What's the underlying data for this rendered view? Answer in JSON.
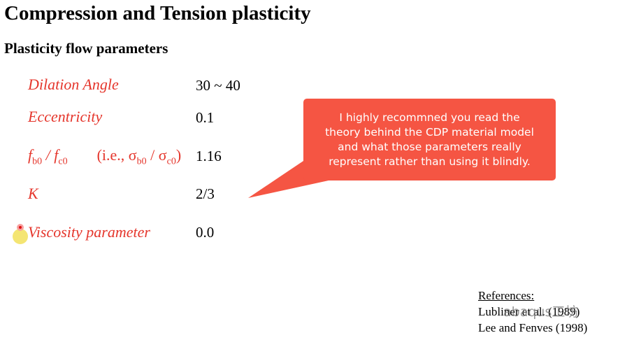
{
  "header": {
    "title": "Compression and Tension plasticity",
    "subtitle": "Plasticity flow parameters"
  },
  "parameters": [
    {
      "name": "Dilation Angle",
      "value": "30 ~ 40"
    },
    {
      "name": "Eccentricity",
      "value": "0.1"
    },
    {
      "name_parts": [
        "f",
        "b0",
        " / ",
        "f",
        "c0"
      ],
      "note_parts": [
        "(i.e., σ",
        "b0",
        " / σ",
        "c0",
        ")"
      ],
      "value": "1.16"
    },
    {
      "name": "K",
      "value": "2/3"
    },
    {
      "name": "Viscosity parameter",
      "value": "0.0"
    }
  ],
  "callout": {
    "lines": [
      "I highly recommned you read the",
      "theory behind the CDP material model",
      "and what those parameters really",
      "represent rather than using it blindly."
    ]
  },
  "references": {
    "heading": "References:",
    "items": [
      "Lubliner et al. (1989)",
      "Lee and Fenves (1998)"
    ]
  },
  "watermark": "abaqus工坊"
}
